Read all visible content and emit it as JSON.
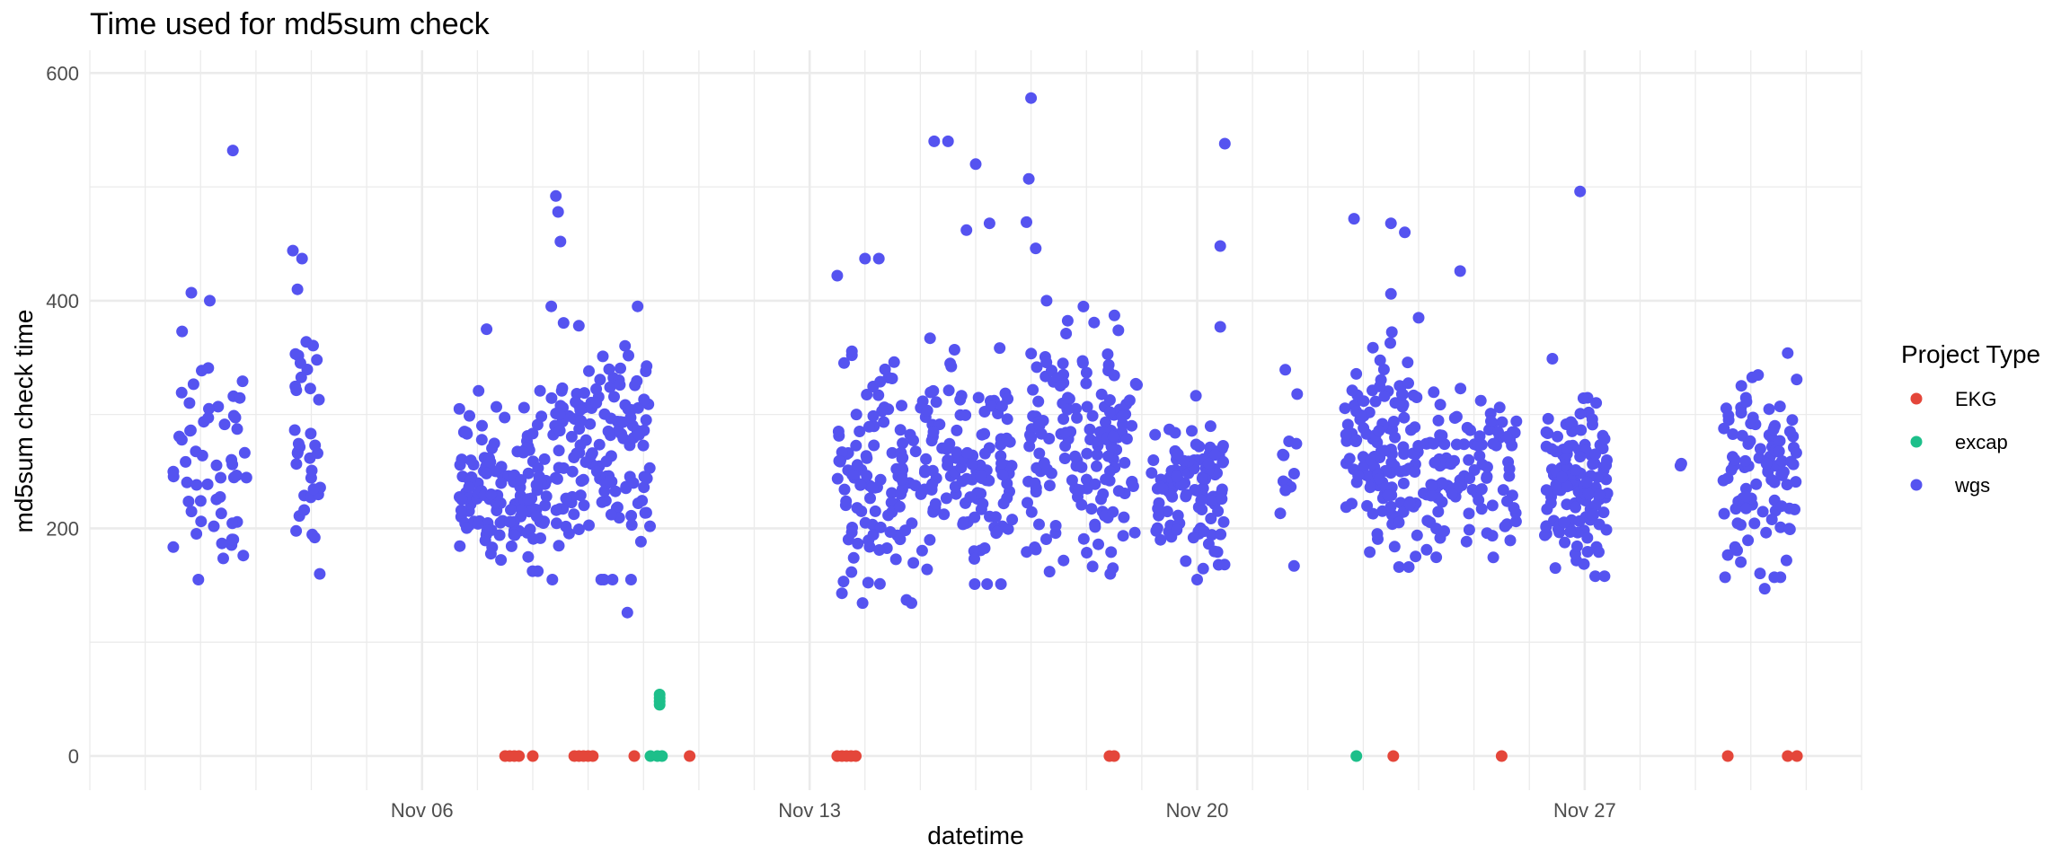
{
  "chart_data": {
    "type": "scatter",
    "title": "Time used for md5sum check",
    "xlabel": "datetime",
    "ylabel": "md5sum check time",
    "x_axis": {
      "type": "date",
      "range": [
        "2023-10-31",
        "2023-12-02"
      ],
      "tick_dates": [
        "2023-11-06",
        "2023-11-13",
        "2023-11-20",
        "2023-11-27"
      ],
      "tick_labels": [
        "Nov 06",
        "Nov 13",
        "Nov 20",
        "Nov 27"
      ]
    },
    "y_axis": {
      "range": [
        -30,
        620
      ],
      "ticks": [
        0,
        200,
        400,
        600
      ],
      "tick_labels": [
        "0",
        "200",
        "400",
        "600"
      ]
    },
    "grid": true,
    "legend": {
      "title": "Project Type",
      "position": "right",
      "entries": [
        {
          "label": "EKG",
          "color": "#e4463a"
        },
        {
          "label": "excap",
          "color": "#1dbf8a"
        },
        {
          "label": "wgs",
          "color": "#5553f0"
        }
      ]
    },
    "series": [
      {
        "name": "EKG",
        "color": "#e4463a",
        "points": [
          [
            "2023-11-07T12:00",
            0
          ],
          [
            "2023-11-07T14:00",
            0
          ],
          [
            "2023-11-07T16:00",
            0
          ],
          [
            "2023-11-07T18:00",
            0
          ],
          [
            "2023-11-08T00:00",
            0
          ],
          [
            "2023-11-08T18:00",
            0
          ],
          [
            "2023-11-08T20:00",
            0
          ],
          [
            "2023-11-08T22:00",
            0
          ],
          [
            "2023-11-09T00:00",
            0
          ],
          [
            "2023-11-09T02:00",
            0
          ],
          [
            "2023-11-09T20:00",
            0
          ],
          [
            "2023-11-10T20:00",
            0
          ],
          [
            "2023-11-13T12:00",
            0
          ],
          [
            "2023-11-13T14:00",
            0
          ],
          [
            "2023-11-13T16:00",
            0
          ],
          [
            "2023-11-13T18:00",
            0
          ],
          [
            "2023-11-13T20:00",
            0
          ],
          [
            "2023-11-18T10:00",
            0
          ],
          [
            "2023-11-18T12:00",
            0
          ],
          [
            "2023-11-23T13:00",
            0
          ],
          [
            "2023-11-25T12:00",
            0
          ],
          [
            "2023-11-29T14:00",
            0
          ],
          [
            "2023-11-30T16:00",
            0
          ],
          [
            "2023-11-30T20:00",
            0
          ]
        ]
      },
      {
        "name": "excap",
        "color": "#1dbf8a",
        "points": [
          [
            "2023-11-10T03:00",
            0
          ],
          [
            "2023-11-10T06:00",
            0
          ],
          [
            "2023-11-10T08:00",
            0
          ],
          [
            "2023-11-10T07:00",
            45
          ],
          [
            "2023-11-10T07:00",
            48
          ],
          [
            "2023-11-10T07:00",
            51
          ],
          [
            "2023-11-10T07:00",
            54
          ],
          [
            "2023-11-22T21:00",
            0
          ]
        ]
      },
      {
        "name": "wgs",
        "color": "#5553f0",
        "clusters": [
          {
            "start": "2023-11-01T12:00",
            "end": "2023-11-02T20:00",
            "n": 55,
            "mean": 265,
            "sd": 50,
            "outliers": [
              [
                "2023-11-02T14:00",
                532
              ],
              [
                "2023-11-01T16:00",
                373
              ],
              [
                "2023-11-01T20:00",
                407
              ],
              [
                "2023-11-02T04:00",
                400
              ]
            ]
          },
          {
            "start": "2023-11-03T14:00",
            "end": "2023-11-04T04:00",
            "n": 35,
            "mean": 270,
            "sd": 50,
            "outliers": [
              [
                "2023-11-03T16:00",
                444
              ],
              [
                "2023-11-03T20:00",
                437
              ],
              [
                "2023-11-03T18:00",
                410
              ]
            ]
          },
          {
            "start": "2023-11-06T16:00",
            "end": "2023-11-08T06:00",
            "n": 140,
            "mean": 235,
            "sd": 33,
            "outliers": [
              [
                "2023-11-07T04:00",
                375
              ]
            ]
          },
          {
            "start": "2023-11-08T08:00",
            "end": "2023-11-10T04:00",
            "n": 150,
            "mean": 265,
            "sd": 50,
            "outliers": [
              [
                "2023-11-08T10:00",
                492
              ],
              [
                "2023-11-08T11:00",
                478
              ],
              [
                "2023-11-08T12:00",
                452
              ],
              [
                "2023-11-09T17:00",
                126
              ]
            ]
          },
          {
            "start": "2023-11-13T12:00",
            "end": "2023-11-14T22:00",
            "n": 110,
            "mean": 240,
            "sd": 48,
            "outliers": [
              [
                "2023-11-13T12:00",
                422
              ],
              [
                "2023-11-14T00:00",
                437
              ],
              [
                "2023-11-14T06:00",
                437
              ],
              [
                "2023-11-13T14:00",
                143
              ]
            ]
          },
          {
            "start": "2023-11-15T00:00",
            "end": "2023-11-16T16:00",
            "n": 130,
            "mean": 250,
            "sd": 45,
            "outliers": [
              [
                "2023-11-15T06:00",
                540
              ],
              [
                "2023-11-15T12:00",
                540
              ],
              [
                "2023-11-16T00:00",
                520
              ],
              [
                "2023-11-15T20:00",
                462
              ],
              [
                "2023-11-16T06:00",
                468
              ]
            ]
          },
          {
            "start": "2023-11-16T22:00",
            "end": "2023-11-18T22:00",
            "n": 160,
            "mean": 270,
            "sd": 50,
            "outliers": [
              [
                "2023-11-17T00:00",
                578
              ],
              [
                "2023-11-16T23:00",
                507
              ],
              [
                "2023-11-16T22:00",
                469
              ],
              [
                "2023-11-17T02:00",
                446
              ],
              [
                "2023-11-17T08:00",
                162
              ]
            ]
          },
          {
            "start": "2023-11-19T04:00",
            "end": "2023-11-20T12:00",
            "n": 110,
            "mean": 235,
            "sd": 32,
            "outliers": [
              [
                "2023-11-20T12:00",
                538
              ],
              [
                "2023-11-20T10:00",
                448
              ],
              [
                "2023-11-20T10:00",
                377
              ],
              [
                "2023-11-20T00:00",
                155
              ]
            ]
          },
          {
            "start": "2023-11-21T12:00",
            "end": "2023-11-21T20:00",
            "n": 12,
            "mean": 255,
            "sd": 45,
            "outliers": [
              [
                "2023-11-21T18:00",
                167
              ]
            ]
          },
          {
            "start": "2023-11-22T16:00",
            "end": "2023-11-24T00:00",
            "n": 130,
            "mean": 265,
            "sd": 45,
            "outliers": [
              [
                "2023-11-22T20:00",
                472
              ],
              [
                "2023-11-23T12:00",
                468
              ],
              [
                "2023-11-23T18:00",
                460
              ],
              [
                "2023-11-23T12:00",
                406
              ]
            ]
          },
          {
            "start": "2023-11-24T02:00",
            "end": "2023-11-25T20:00",
            "n": 110,
            "mean": 245,
            "sd": 35,
            "outliers": [
              [
                "2023-11-24T18:00",
                426
              ],
              [
                "2023-11-24T00:00",
                385
              ]
            ]
          },
          {
            "start": "2023-11-26T06:00",
            "end": "2023-11-27T10:00",
            "n": 130,
            "mean": 235,
            "sd": 35,
            "outliers": [
              [
                "2023-11-26T22:00",
                496
              ],
              [
                "2023-11-26T10:00",
                349
              ]
            ]
          },
          {
            "start": "2023-11-28T16:00",
            "end": "2023-11-28T18:00",
            "n": 2,
            "mean": 252,
            "sd": 6,
            "outliers": []
          },
          {
            "start": "2023-11-29T12:00",
            "end": "2023-11-30T20:00",
            "n": 100,
            "mean": 245,
            "sd": 40,
            "outliers": [
              [
                "2023-11-30T16:00",
                354
              ],
              [
                "2023-11-30T06:00",
                147
              ]
            ]
          }
        ]
      }
    ]
  }
}
